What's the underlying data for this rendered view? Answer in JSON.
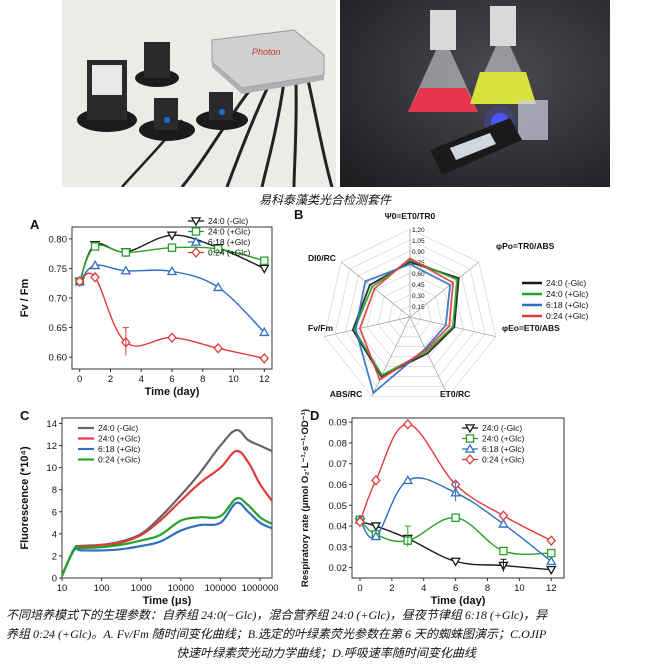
{
  "figure": {
    "photo_caption": "易科泰藻类光合检测套件",
    "caption_line1": "不同培养模式下的生理参数：自养组 24:0(−Glc)，混合营养组 24:0 (+Glc)，昼夜节律组 6:18 (+Glc)，异",
    "caption_line2": "养组 0:24 (+Glc)。A. Fv/Fm 随时间变化曲线；B.选定的叶绿素荧光参数在第 6 天的蜘蛛图演示；C.OJIP",
    "caption_line3": "快速叶绿素荧光动力学曲线；D.呼吸速率随时间变化曲线",
    "device_label": "Photon"
  },
  "colors": {
    "s1": "#1a1a1a",
    "s2": "#27a327",
    "s3": "#2f6fc2",
    "s4": "#e23b3b",
    "gray": "#666666"
  },
  "chart_data": [
    {
      "panel": "A",
      "type": "line",
      "xlabel": "Time (day)",
      "ylabel": "Fv / Fm",
      "xlim": [
        -0.5,
        12.5
      ],
      "ylim": [
        0.58,
        0.82
      ],
      "xticks": [
        "0",
        "2",
        "4",
        "6",
        "8",
        "10",
        "12"
      ],
      "yticks": [
        "0.60",
        "0.65",
        "0.70",
        "0.75",
        "0.80"
      ],
      "legend": [
        "24:0 (-Glc)",
        "24:0 (+Glc)",
        "6:18 (+Glc)",
        "0:24 (+Glc)"
      ],
      "series": [
        {
          "name": "24:0 (-Glc)",
          "x": [
            0,
            1,
            3,
            6,
            9,
            12
          ],
          "y": [
            0.728,
            0.79,
            0.778,
            0.806,
            0.785,
            0.75
          ]
        },
        {
          "name": "24:0 (+Glc)",
          "x": [
            0,
            1,
            3,
            6,
            9,
            12
          ],
          "y": [
            0.728,
            0.787,
            0.777,
            0.785,
            0.783,
            0.763
          ]
        },
        {
          "name": "6:18 (+Glc)",
          "x": [
            0,
            1,
            3,
            6,
            9,
            12
          ],
          "y": [
            0.728,
            0.755,
            0.746,
            0.745,
            0.718,
            0.642
          ]
        },
        {
          "name": "0:24 (+Glc)",
          "x": [
            0,
            1,
            3,
            6,
            9,
            12
          ],
          "y": [
            0.728,
            0.735,
            0.625,
            0.633,
            0.615,
            0.598
          ]
        }
      ]
    },
    {
      "panel": "B",
      "type": "radar",
      "axes": [
        "Ψ0=ET0/TR0",
        "φPo=TR0/ABS",
        "φEo=ET0/ABS",
        "ET0/RC",
        "ABS/RC",
        "Fv/Fm",
        "DI0/RC"
      ],
      "scale_ticks": [
        "0.15",
        "0.30",
        "0.45",
        "0.60",
        "0.75",
        "0.90",
        "1.05",
        "1.20"
      ],
      "legend": [
        "24:0 (-Glc)",
        "24:0 (+Glc)",
        "6:18 (+Glc)",
        "0:24 (+Glc)"
      ],
      "series": [
        {
          "name": "24:0 (-Glc)",
          "values": [
            0.75,
            0.85,
            0.62,
            0.55,
            0.9,
            0.8,
            0.7
          ]
        },
        {
          "name": "24:0 (+Glc)",
          "values": [
            0.78,
            0.82,
            0.6,
            0.52,
            0.88,
            0.78,
            0.66
          ]
        },
        {
          "name": "6:18 (+Glc)",
          "values": [
            0.72,
            0.7,
            0.5,
            0.48,
            1.15,
            0.76,
            0.78
          ]
        },
        {
          "name": "0:24 (+Glc)",
          "values": [
            0.8,
            0.75,
            0.55,
            0.5,
            0.95,
            0.7,
            0.62
          ]
        }
      ]
    },
    {
      "panel": "C",
      "type": "line",
      "xlabel": "Time (μs)",
      "ylabel": "Fluorescence (*10⁴)",
      "xscale": "log",
      "xlim": [
        10,
        2000000
      ],
      "ylim": [
        0,
        14.5
      ],
      "xticks": [
        "10",
        "100",
        "1000",
        "10000",
        "100000",
        "1000000"
      ],
      "yticks": [
        "0",
        "2",
        "4",
        "6",
        "8",
        "10",
        "12",
        "14"
      ],
      "legend": [
        "24:0 (-Glc)",
        "24:0 (+Glc)",
        "6:18 (+Glc)",
        "0:24 (+Glc)"
      ],
      "series": [
        {
          "name": "24:0 (-Glc)",
          "x": [
            10,
            20,
            30,
            100,
            300,
            1000,
            3000,
            10000,
            30000,
            100000,
            250000,
            500000,
            1000000,
            2000000
          ],
          "y": [
            0.2,
            2.6,
            2.9,
            3.0,
            3.3,
            4.0,
            5.5,
            7.5,
            9.5,
            12.0,
            13.4,
            12.5,
            12.0,
            11.5
          ]
        },
        {
          "name": "24:0 (+Glc)",
          "x": [
            10,
            20,
            30,
            100,
            300,
            1000,
            3000,
            10000,
            30000,
            100000,
            250000,
            500000,
            1000000,
            2000000
          ],
          "y": [
            0.2,
            2.6,
            2.8,
            3.0,
            3.2,
            3.9,
            5.2,
            7.0,
            8.6,
            10.0,
            11.5,
            10.5,
            8.5,
            7.0
          ]
        },
        {
          "name": "6:18 (+Glc)",
          "x": [
            10,
            20,
            30,
            100,
            300,
            1000,
            3000,
            10000,
            30000,
            100000,
            250000,
            500000,
            1000000,
            2000000
          ],
          "y": [
            0.2,
            2.5,
            2.5,
            2.5,
            2.6,
            2.9,
            3.3,
            4.3,
            4.8,
            5.0,
            6.8,
            6.0,
            5.0,
            4.5
          ]
        },
        {
          "name": "0:24 (+Glc)",
          "x": [
            10,
            20,
            30,
            100,
            300,
            1000,
            3000,
            10000,
            30000,
            100000,
            250000,
            500000,
            1000000,
            2000000
          ],
          "y": [
            0.2,
            2.6,
            2.7,
            2.8,
            3.0,
            3.4,
            3.9,
            5.2,
            5.5,
            5.6,
            7.2,
            6.6,
            5.5,
            4.9
          ]
        }
      ]
    },
    {
      "panel": "D",
      "type": "line",
      "xlabel": "Time (day)",
      "ylabel": "Respiratory rate (μmol O₂·L⁻¹·s⁻¹·OD⁻¹)",
      "xlim": [
        -0.5,
        12.8
      ],
      "ylim": [
        0.015,
        0.092
      ],
      "xticks": [
        "0",
        "2",
        "4",
        "6",
        "8",
        "10",
        "12"
      ],
      "yticks": [
        "0.02",
        "0.03",
        "0.04",
        "0.05",
        "0.06",
        "0.07",
        "0.08",
        "0.09"
      ],
      "legend": [
        "24:0 (-Glc)",
        "24:0 (+Glc)",
        "6:18 (+Glc)",
        "0:24 (+Glc)"
      ],
      "series": [
        {
          "name": "24:0 (-Glc)",
          "x": [
            0,
            1,
            3,
            6,
            9,
            12
          ],
          "y": [
            0.042,
            0.04,
            0.034,
            0.023,
            0.021,
            0.019
          ]
        },
        {
          "name": "24:0 (+Glc)",
          "x": [
            0,
            1,
            3,
            6,
            9,
            12
          ],
          "y": [
            0.043,
            0.036,
            0.033,
            0.044,
            0.028,
            0.027
          ]
        },
        {
          "name": "6:18 (+Glc)",
          "x": [
            0,
            1,
            3,
            6,
            9,
            12
          ],
          "y": [
            0.043,
            0.035,
            0.062,
            0.056,
            0.041,
            0.023
          ]
        },
        {
          "name": "0:24 (+Glc)",
          "x": [
            0,
            1,
            3,
            6,
            9,
            12
          ],
          "y": [
            0.042,
            0.062,
            0.089,
            0.06,
            0.045,
            0.033
          ]
        }
      ]
    }
  ]
}
